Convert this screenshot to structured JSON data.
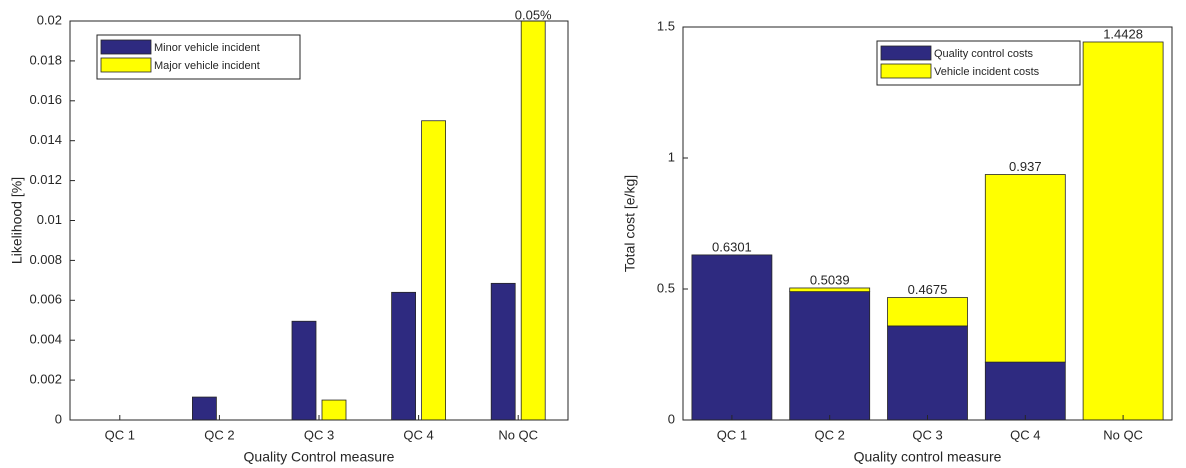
{
  "chart_data": [
    {
      "type": "bar",
      "categories": [
        "QC 1",
        "QC 2",
        "QC 3",
        "QC 4",
        "No QC"
      ],
      "series": [
        {
          "name": "Minor vehicle incident",
          "color": "#2e2a80",
          "values": [
            0,
            0.00115,
            0.00495,
            0.0064,
            0.00685
          ]
        },
        {
          "name": "Major vehicle incident",
          "color": "#ffff00",
          "values": [
            0,
            0,
            0.001,
            0.015,
            0.05
          ],
          "value_labels": [
            null,
            null,
            null,
            null,
            "0.05%"
          ]
        }
      ],
      "xlabel": "Quality Control measure",
      "ylabel": "Likelihood [%]",
      "ylim": [
        0,
        0.02
      ],
      "yticks": [
        0,
        0.002,
        0.004,
        0.006,
        0.008,
        0.01,
        0.012,
        0.014,
        0.016,
        0.018,
        0.02
      ],
      "legend": "upper-left"
    },
    {
      "type": "stacked_bar",
      "categories": [
        "QC 1",
        "QC 2",
        "QC 3",
        "QC 4",
        "No QC"
      ],
      "series": [
        {
          "name": "Quality control costs",
          "color": "#2e2a80",
          "values": [
            0.6301,
            0.49,
            0.359,
            0.221,
            0
          ]
        },
        {
          "name": "Vehicle incident costs",
          "color": "#ffff00",
          "values": [
            0,
            0.0139,
            0.1085,
            0.716,
            1.4428
          ]
        }
      ],
      "totals": [
        0.6301,
        0.5039,
        0.4675,
        0.937,
        1.4428
      ],
      "xlabel": "Quality control measure",
      "ylabel": "Total cost [e/kg]",
      "ylim": [
        0,
        1.5
      ],
      "yticks": [
        0,
        0.5,
        1,
        1.5
      ],
      "legend": "upper-right"
    }
  ]
}
